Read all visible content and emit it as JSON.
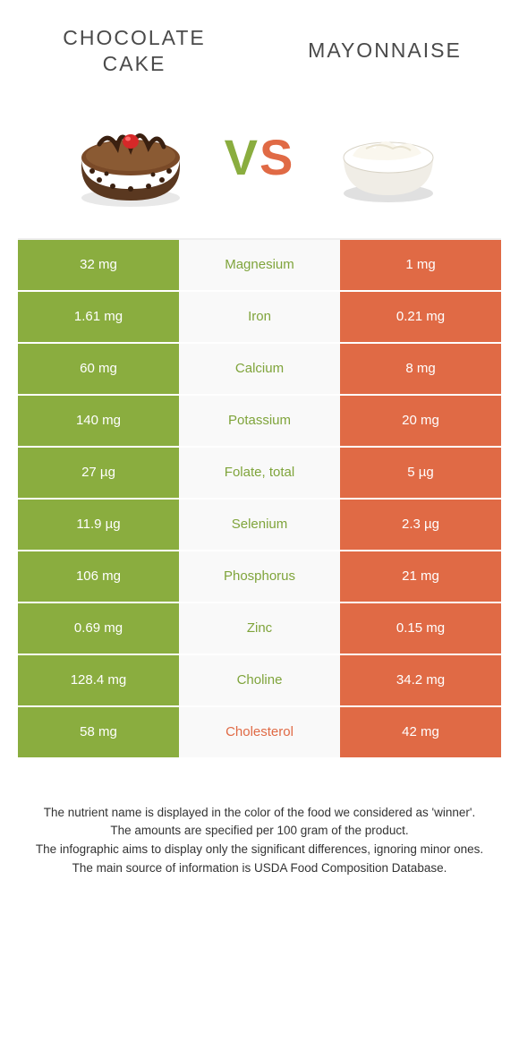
{
  "colors": {
    "green": "#8aad3f",
    "orange": "#e06a45",
    "row_gap": "#ffffff",
    "mid_bg": "#f9f9f9",
    "text_dark": "#333333"
  },
  "header": {
    "left_title": "CHOCOLATE CAKE",
    "right_title": "MAYONNAISE",
    "vs_v": "V",
    "vs_s": "S"
  },
  "table": {
    "rows": [
      {
        "left": "32 mg",
        "nutrient": "Magnesium",
        "right": "1 mg",
        "winner": "left"
      },
      {
        "left": "1.61 mg",
        "nutrient": "Iron",
        "right": "0.21 mg",
        "winner": "left"
      },
      {
        "left": "60 mg",
        "nutrient": "Calcium",
        "right": "8 mg",
        "winner": "left"
      },
      {
        "left": "140 mg",
        "nutrient": "Potassium",
        "right": "20 mg",
        "winner": "left"
      },
      {
        "left": "27 µg",
        "nutrient": "Folate, total",
        "right": "5 µg",
        "winner": "left"
      },
      {
        "left": "11.9 µg",
        "nutrient": "Selenium",
        "right": "2.3 µg",
        "winner": "left"
      },
      {
        "left": "106 mg",
        "nutrient": "Phosphorus",
        "right": "21 mg",
        "winner": "left"
      },
      {
        "left": "0.69 mg",
        "nutrient": "Zinc",
        "right": "0.15 mg",
        "winner": "left"
      },
      {
        "left": "128.4 mg",
        "nutrient": "Choline",
        "right": "34.2 mg",
        "winner": "left"
      },
      {
        "left": "58 mg",
        "nutrient": "Cholesterol",
        "right": "42 mg",
        "winner": "right"
      }
    ]
  },
  "footer": {
    "line1": "The nutrient name is displayed in the color of the food we considered as 'winner'.",
    "line2": "The amounts are specified per 100 gram of the product.",
    "line3": "The infographic aims to display only the significant differences, ignoring minor ones.",
    "line4": "The main source of information is USDA Food Composition Database."
  }
}
